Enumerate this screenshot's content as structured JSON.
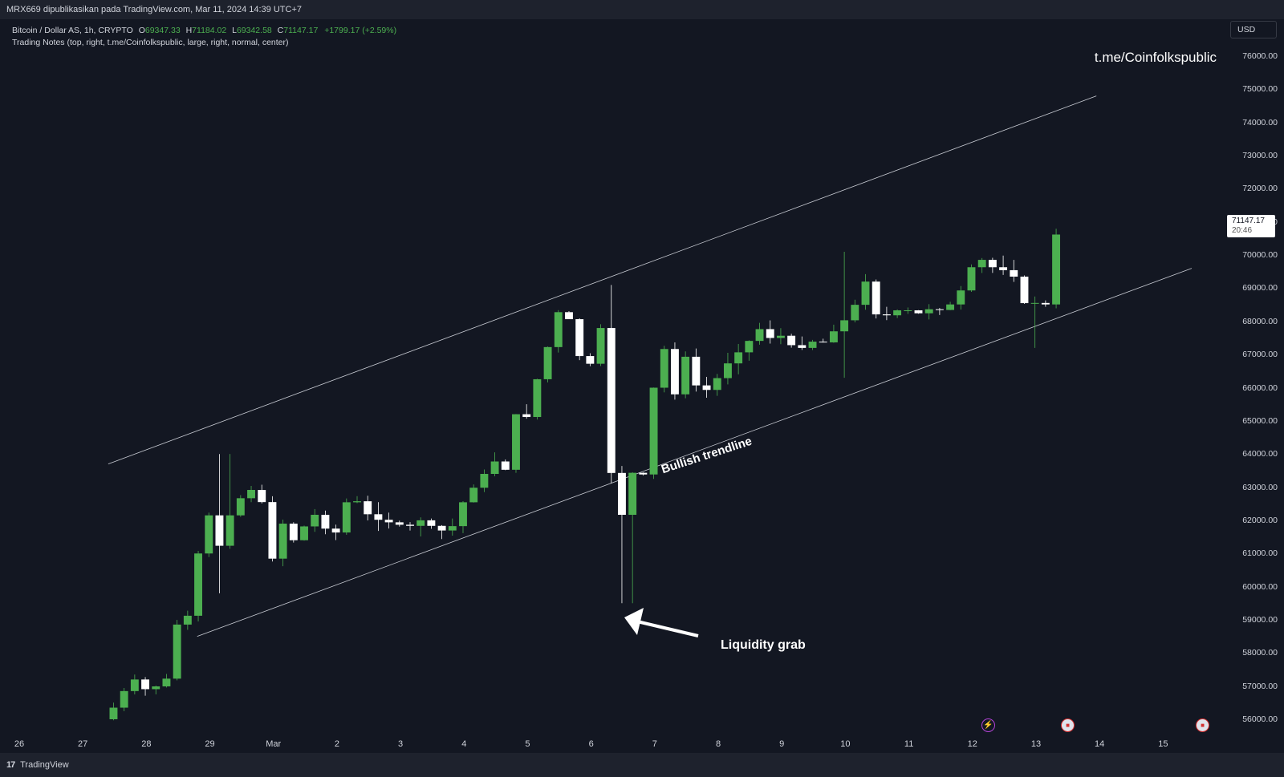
{
  "header": {
    "publish_line": "MRX669 dipublikasikan pada TradingView.com, Mar 11, 2024 14:39 UTC+7"
  },
  "legend": {
    "symbol": "Bitcoin / Dollar AS, 1h, CRYPTO",
    "open_label": "O",
    "open": "69347.33",
    "high_label": "H",
    "high": "71184.02",
    "low_label": "L",
    "low": "69342.58",
    "close_label": "C",
    "close": "71147.17",
    "change": "+1799.17 (+2.59%)",
    "indicator": "Trading Notes (top, right, t.me/Coinfolkspublic, large, right, normal, center)"
  },
  "watermark": "t.me/Coinfolkspublic",
  "currency_button": "USD",
  "last_price": {
    "price": "71147.17",
    "countdown": "20:46"
  },
  "annotations": {
    "trendline": "Bullish trendline",
    "liquidity": "Liquidity grab"
  },
  "footer": {
    "brand": "TradingView",
    "logo_glyph": "17"
  },
  "colors": {
    "background": "#131722",
    "up": "#4caf50",
    "down": "#ffffff",
    "line": "#d1d4dc"
  },
  "icons": [
    "bolt-event-icon",
    "us-flag-event-icon",
    "us-flag-event-icon"
  ],
  "chart_data": {
    "type": "candlestick",
    "title": "Bitcoin / Dollar AS, 1h, CRYPTO",
    "y_tick_labels": [
      "56000.00",
      "57000.00",
      "58000.00",
      "59000.00",
      "60000.00",
      "61000.00",
      "62000.00",
      "63000.00",
      "64000.00",
      "65000.00",
      "66000.00",
      "67000.00",
      "68000.00",
      "69000.00",
      "70000.00",
      "71000.00",
      "72000.00",
      "73000.00",
      "74000.00",
      "75000.00",
      "76000.00"
    ],
    "x_tick_labels": [
      "26",
      "27",
      "28",
      "29",
      "Mar",
      "2",
      "3",
      "4",
      "5",
      "6",
      "7",
      "8",
      "9",
      "10",
      "11",
      "12",
      "13",
      "14",
      "15"
    ],
    "x_unit": "days since Feb 26, 2024",
    "ylim": [
      55900,
      76500
    ],
    "xlim": [
      0,
      18.45
    ],
    "grid": false,
    "channel_upper": [
      [
        1.4,
        63700
      ],
      [
        16.95,
        74800
      ]
    ],
    "channel_lower": [
      [
        2.8,
        58500
      ],
      [
        18.45,
        69600
      ]
    ],
    "price_path": [
      [
        1.4,
        56000
      ],
      [
        1.55,
        56300
      ],
      [
        1.75,
        56900
      ],
      [
        1.9,
        57200
      ],
      [
        2.05,
        56900
      ],
      [
        2.25,
        57000
      ],
      [
        2.45,
        57300
      ],
      [
        2.6,
        59300
      ],
      [
        2.75,
        59100
      ],
      [
        2.9,
        61000
      ],
      [
        3.05,
        62500
      ],
      [
        3.15,
        60400
      ],
      [
        3.3,
        61900
      ],
      [
        3.5,
        62400
      ],
      [
        3.65,
        63000
      ],
      [
        3.85,
        62800
      ],
      [
        3.95,
        62300
      ],
      [
        4.05,
        60700
      ],
      [
        4.2,
        62000
      ],
      [
        4.4,
        61400
      ],
      [
        4.6,
        61900
      ],
      [
        4.8,
        62300
      ],
      [
        5.0,
        61200
      ],
      [
        5.2,
        62500
      ],
      [
        5.35,
        62700
      ],
      [
        5.55,
        62200
      ],
      [
        5.75,
        62000
      ],
      [
        6.0,
        61900
      ],
      [
        6.2,
        61800
      ],
      [
        6.4,
        62000
      ],
      [
        6.6,
        61800
      ],
      [
        6.85,
        61600
      ],
      [
        7.05,
        62500
      ],
      [
        7.2,
        62900
      ],
      [
        7.4,
        63400
      ],
      [
        7.55,
        63800
      ],
      [
        7.75,
        63500
      ],
      [
        7.9,
        65200
      ],
      [
        8.1,
        65100
      ],
      [
        8.25,
        66400
      ],
      [
        8.45,
        67500
      ],
      [
        8.6,
        68500
      ],
      [
        8.72,
        68200
      ],
      [
        8.82,
        67200
      ],
      [
        8.95,
        66800
      ],
      [
        9.1,
        66700
      ],
      [
        9.2,
        68700
      ],
      [
        9.3,
        66000
      ],
      [
        9.38,
        64000
      ],
      [
        9.45,
        62000
      ],
      [
        9.5,
        61500
      ],
      [
        9.6,
        62500
      ],
      [
        9.7,
        63500
      ],
      [
        9.8,
        63300
      ],
      [
        9.92,
        63400
      ],
      [
        10.0,
        64800
      ],
      [
        10.1,
        66600
      ],
      [
        10.2,
        67200
      ],
      [
        10.3,
        67100
      ],
      [
        10.4,
        65800
      ],
      [
        10.5,
        66800
      ],
      [
        10.6,
        67000
      ],
      [
        10.72,
        66100
      ],
      [
        10.85,
        65800
      ],
      [
        11.0,
        66200
      ],
      [
        11.15,
        66400
      ],
      [
        11.3,
        67000
      ],
      [
        11.45,
        67100
      ],
      [
        11.6,
        67500
      ],
      [
        11.75,
        67800
      ],
      [
        11.9,
        67500
      ],
      [
        12.05,
        67600
      ],
      [
        12.2,
        67300
      ],
      [
        12.4,
        67200
      ],
      [
        12.55,
        67400
      ],
      [
        12.7,
        67300
      ],
      [
        12.85,
        67600
      ],
      [
        13.0,
        67900
      ],
      [
        13.1,
        68100
      ],
      [
        13.2,
        68200
      ],
      [
        13.3,
        69100
      ],
      [
        13.4,
        69200
      ],
      [
        13.5,
        68300
      ],
      [
        13.65,
        68100
      ],
      [
        13.85,
        68300
      ],
      [
        14.0,
        68400
      ],
      [
        14.2,
        68200
      ],
      [
        14.35,
        68400
      ],
      [
        14.5,
        68300
      ],
      [
        14.65,
        68400
      ],
      [
        14.8,
        68600
      ],
      [
        14.95,
        69100
      ],
      [
        15.05,
        69600
      ],
      [
        15.2,
        69900
      ],
      [
        15.35,
        69700
      ],
      [
        15.5,
        69500
      ],
      [
        15.65,
        69600
      ],
      [
        15.75,
        69300
      ],
      [
        15.85,
        68700
      ],
      [
        15.95,
        68400
      ],
      [
        16.1,
        68600
      ],
      [
        16.25,
        68500
      ],
      [
        16.35,
        69300
      ],
      [
        16.42,
        71147
      ]
    ],
    "spike_highs": [
      [
        3.15,
        64000
      ],
      [
        9.2,
        69100
      ],
      [
        12.85,
        70100
      ],
      [
        16.42,
        71184
      ]
    ],
    "spike_lows": [
      [
        9.47,
        59500
      ],
      [
        3.1,
        59800
      ],
      [
        12.85,
        66300
      ],
      [
        15.95,
        67200
      ]
    ]
  }
}
